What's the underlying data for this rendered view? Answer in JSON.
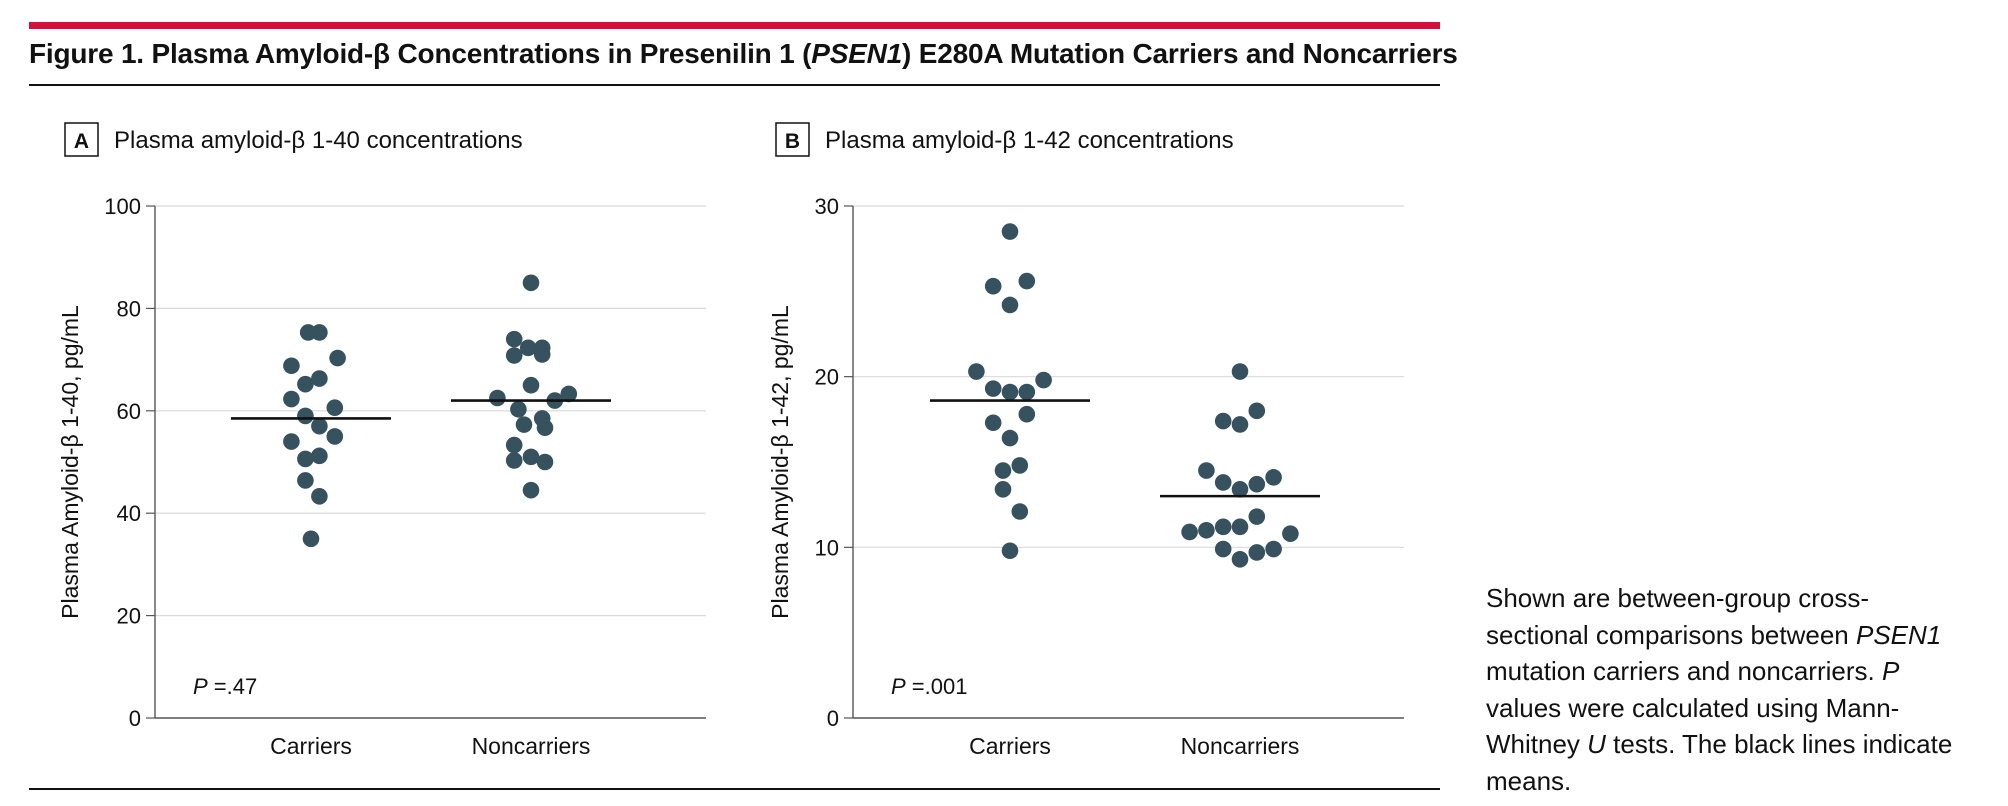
{
  "figure": {
    "title_prefix": "Figure 1. Plasma Amyloid-β Concentrations in Presenilin 1 (",
    "title_italic": "PSEN1",
    "title_suffix": ") E280A Mutation Carriers and Noncarriers",
    "accent_color": "#d40f3a",
    "point_color": "#36525f"
  },
  "caption": {
    "part1": "Shown are between-group cross-sectional comparisons between ",
    "italic1": "PSEN1",
    "part2": " mutation carriers and noncarriers. ",
    "italic2": "P",
    "part3": " values were calculated using Mann-Whitney ",
    "italic3": "U",
    "part4": " tests. The black lines indicate means."
  },
  "chart_data": [
    {
      "type": "scatter",
      "panel": "A",
      "title": "Plasma amyloid-β 1-40 concentrations",
      "ylabel": "Plasma Amyloid-β 1-40, pg/mL",
      "categories": [
        "Carriers",
        "Noncarriers"
      ],
      "ylim": [
        0,
        100
      ],
      "yticks": [
        0,
        20,
        40,
        60,
        80,
        100
      ],
      "grid": true,
      "p_label": "P",
      "p_value": "=.47",
      "means": [
        58.5,
        62.0
      ],
      "series": [
        {
          "category": "Carriers",
          "points": [
            [
              -0.02,
              75.3
            ],
            [
              0.06,
              75.3
            ],
            [
              -0.14,
              68.8
            ],
            [
              0.19,
              70.3
            ],
            [
              -0.04,
              65.2
            ],
            [
              0.06,
              66.3
            ],
            [
              -0.14,
              62.3
            ],
            [
              0.17,
              60.6
            ],
            [
              -0.04,
              59.0
            ],
            [
              0.06,
              57.0
            ],
            [
              0.17,
              55.0
            ],
            [
              -0.14,
              54.0
            ],
            [
              -0.04,
              50.6
            ],
            [
              0.06,
              51.2
            ],
            [
              -0.04,
              46.4
            ],
            [
              0.06,
              43.3
            ],
            [
              0.0,
              35.0
            ]
          ]
        },
        {
          "category": "Noncarriers",
          "points": [
            [
              0.0,
              85.0
            ],
            [
              -0.12,
              74.0
            ],
            [
              -0.02,
              72.3
            ],
            [
              0.08,
              72.3
            ],
            [
              -0.12,
              70.8
            ],
            [
              0.08,
              71.0
            ],
            [
              0.0,
              65.0
            ],
            [
              -0.24,
              62.5
            ],
            [
              0.17,
              62.0
            ],
            [
              0.27,
              63.3
            ],
            [
              -0.09,
              60.3
            ],
            [
              0.08,
              58.5
            ],
            [
              -0.05,
              57.3
            ],
            [
              0.1,
              56.7
            ],
            [
              -0.12,
              53.3
            ],
            [
              -0.12,
              50.3
            ],
            [
              0.0,
              51.0
            ],
            [
              0.1,
              50.0
            ],
            [
              0.0,
              44.5
            ]
          ]
        }
      ]
    },
    {
      "type": "scatter",
      "panel": "B",
      "title": "Plasma amyloid-β 1-42 concentrations",
      "ylabel": "Plasma Amyloid-β 1-42, pg/mL",
      "categories": [
        "Carriers",
        "Noncarriers"
      ],
      "ylim": [
        0,
        30
      ],
      "yticks": [
        0,
        10,
        20,
        30
      ],
      "grid": true,
      "p_label": "P",
      "p_value": "=.001",
      "means": [
        18.6,
        13.0
      ],
      "series": [
        {
          "category": "Carriers",
          "points": [
            [
              0.0,
              28.5
            ],
            [
              -0.12,
              25.3
            ],
            [
              0.12,
              25.6
            ],
            [
              0.0,
              24.2
            ],
            [
              -0.24,
              20.3
            ],
            [
              0.24,
              19.8
            ],
            [
              -0.12,
              19.3
            ],
            [
              0.0,
              19.1
            ],
            [
              0.12,
              19.1
            ],
            [
              -0.12,
              17.3
            ],
            [
              0.12,
              17.8
            ],
            [
              0.0,
              16.4
            ],
            [
              -0.05,
              14.5
            ],
            [
              0.07,
              14.8
            ],
            [
              -0.05,
              13.4
            ],
            [
              0.07,
              12.1
            ],
            [
              0.0,
              9.8
            ]
          ]
        },
        {
          "category": "Noncarriers",
          "points": [
            [
              0.0,
              20.3
            ],
            [
              -0.12,
              17.4
            ],
            [
              0.0,
              17.2
            ],
            [
              0.12,
              18.0
            ],
            [
              -0.24,
              14.5
            ],
            [
              0.24,
              14.1
            ],
            [
              -0.12,
              13.8
            ],
            [
              0.0,
              13.4
            ],
            [
              0.12,
              13.7
            ],
            [
              -0.24,
              11.0
            ],
            [
              -0.12,
              11.2
            ],
            [
              0.0,
              11.2
            ],
            [
              0.12,
              11.8
            ],
            [
              -0.36,
              10.9
            ],
            [
              0.36,
              10.8
            ],
            [
              -0.12,
              9.9
            ],
            [
              0.0,
              9.3
            ],
            [
              0.12,
              9.7
            ],
            [
              0.24,
              9.9
            ]
          ]
        }
      ]
    }
  ]
}
